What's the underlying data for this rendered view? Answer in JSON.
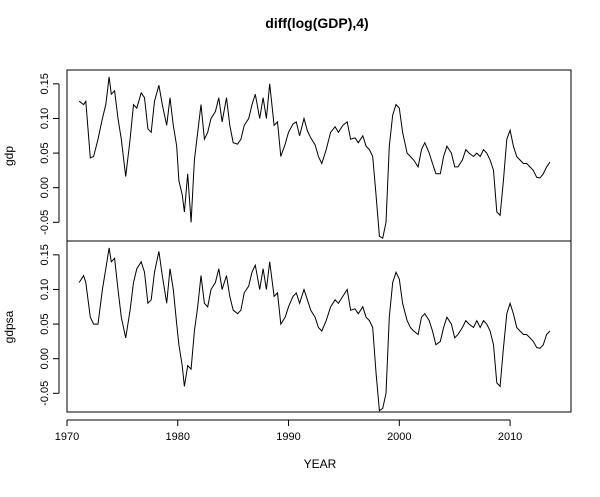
{
  "chart_data": {
    "type": "line",
    "title": "diff(log(GDP),4)",
    "xlabel": "YEAR",
    "xlim": [
      1970,
      2015.5
    ],
    "x_ticks": [
      1970,
      1980,
      1990,
      2000,
      2010
    ],
    "colors": {
      "line": "#000000",
      "axis": "#000000",
      "background": "#ffffff"
    },
    "panels": [
      {
        "ylabel": "gdp",
        "ylim": [
          -0.077,
          0.17
        ],
        "y_ticks": [
          -0.05,
          0.0,
          0.05,
          0.1,
          0.15
        ],
        "y_tick_labels": [
          "-0.05",
          "0.00",
          "0.05",
          "0.10",
          "0.15"
        ],
        "x": [
          1971.1,
          1971.5,
          1971.7,
          1972.1,
          1972.4,
          1972.8,
          1973.2,
          1973.5,
          1973.8,
          1974.0,
          1974.3,
          1974.6,
          1974.9,
          1975.3,
          1975.7,
          1976.0,
          1976.3,
          1976.7,
          1977.0,
          1977.3,
          1977.6,
          1977.9,
          1978.3,
          1978.6,
          1979.0,
          1979.3,
          1979.6,
          1979.9,
          1980.1,
          1980.4,
          1980.6,
          1980.9,
          1981.2,
          1981.5,
          1981.8,
          1982.1,
          1982.4,
          1982.7,
          1983.0,
          1983.4,
          1983.7,
          1984.0,
          1984.4,
          1984.7,
          1985.0,
          1985.4,
          1985.7,
          1986.0,
          1986.4,
          1986.7,
          1987.0,
          1987.4,
          1987.7,
          1988.0,
          1988.3,
          1988.7,
          1989.0,
          1989.3,
          1989.7,
          1990.0,
          1990.4,
          1990.7,
          1991.0,
          1991.4,
          1991.7,
          1992.0,
          1992.4,
          1992.7,
          1993.0,
          1993.4,
          1993.8,
          1994.2,
          1994.5,
          1994.9,
          1995.3,
          1995.6,
          1996.0,
          1996.3,
          1996.7,
          1997.0,
          1997.3,
          1997.6,
          1997.9,
          1998.2,
          1998.5,
          1998.8,
          1999.1,
          1999.4,
          1999.7,
          2000.0,
          2000.3,
          2000.7,
          2001.0,
          2001.3,
          2001.7,
          2002.0,
          2002.3,
          2002.7,
          2003.0,
          2003.3,
          2003.7,
          2004.0,
          2004.3,
          2004.7,
          2005.0,
          2005.3,
          2005.7,
          2006.0,
          2006.3,
          2006.7,
          2007.0,
          2007.3,
          2007.6,
          2007.9,
          2008.2,
          2008.5,
          2008.8,
          2009.1,
          2009.4,
          2009.7,
          2010.0,
          2010.3,
          2010.6,
          2010.9,
          2011.2,
          2011.5,
          2011.8,
          2012.1,
          2012.4,
          2012.7,
          2013.0,
          2013.3,
          2013.6
        ],
        "values": [
          0.125,
          0.12,
          0.125,
          0.043,
          0.045,
          0.07,
          0.1,
          0.12,
          0.16,
          0.135,
          0.14,
          0.1,
          0.07,
          0.016,
          0.07,
          0.12,
          0.115,
          0.137,
          0.13,
          0.085,
          0.08,
          0.125,
          0.148,
          0.12,
          0.09,
          0.13,
          0.09,
          0.06,
          0.01,
          -0.01,
          -0.035,
          0.02,
          -0.05,
          0.04,
          0.08,
          0.12,
          0.07,
          0.08,
          0.1,
          0.11,
          0.13,
          0.095,
          0.13,
          0.09,
          0.065,
          0.063,
          0.07,
          0.09,
          0.1,
          0.12,
          0.135,
          0.1,
          0.13,
          0.1,
          0.15,
          0.09,
          0.095,
          0.045,
          0.063,
          0.08,
          0.092,
          0.095,
          0.075,
          0.1,
          0.082,
          0.072,
          0.062,
          0.045,
          0.035,
          0.055,
          0.08,
          0.088,
          0.08,
          0.09,
          0.095,
          0.07,
          0.072,
          0.065,
          0.075,
          0.06,
          0.055,
          0.045,
          -0.01,
          -0.07,
          -0.073,
          -0.05,
          0.06,
          0.105,
          0.12,
          0.115,
          0.08,
          0.05,
          0.045,
          0.04,
          0.03,
          0.055,
          0.065,
          0.05,
          0.035,
          0.02,
          0.02,
          0.045,
          0.06,
          0.05,
          0.03,
          0.03,
          0.04,
          0.055,
          0.05,
          0.045,
          0.05,
          0.045,
          0.055,
          0.05,
          0.04,
          0.025,
          -0.035,
          -0.04,
          0.01,
          0.07,
          0.083,
          0.06,
          0.045,
          0.04,
          0.035,
          0.035,
          0.03,
          0.025,
          0.015,
          0.014,
          0.02,
          0.03,
          0.037
        ]
      },
      {
        "ylabel": "gdpsa",
        "ylim": [
          -0.077,
          0.17
        ],
        "y_ticks": [
          -0.05,
          0.0,
          0.05,
          0.1,
          0.15
        ],
        "y_tick_labels": [
          "-0.05",
          "0.00",
          "0.05",
          "0.10",
          "0.15"
        ],
        "x": [
          1971.1,
          1971.5,
          1971.7,
          1972.1,
          1972.4,
          1972.8,
          1973.2,
          1973.5,
          1973.8,
          1974.0,
          1974.3,
          1974.6,
          1974.9,
          1975.3,
          1975.7,
          1976.0,
          1976.3,
          1976.7,
          1977.0,
          1977.3,
          1977.6,
          1977.9,
          1978.3,
          1978.6,
          1979.0,
          1979.3,
          1979.6,
          1979.9,
          1980.1,
          1980.4,
          1980.6,
          1980.9,
          1981.2,
          1981.5,
          1981.8,
          1982.1,
          1982.4,
          1982.7,
          1983.0,
          1983.4,
          1983.7,
          1984.0,
          1984.4,
          1984.7,
          1985.0,
          1985.4,
          1985.7,
          1986.0,
          1986.4,
          1986.7,
          1987.0,
          1987.4,
          1987.7,
          1988.0,
          1988.3,
          1988.7,
          1989.0,
          1989.3,
          1989.7,
          1990.0,
          1990.4,
          1990.7,
          1991.0,
          1991.4,
          1991.7,
          1992.0,
          1992.4,
          1992.7,
          1993.0,
          1993.4,
          1993.8,
          1994.2,
          1994.5,
          1994.9,
          1995.3,
          1995.6,
          1996.0,
          1996.3,
          1996.7,
          1997.0,
          1997.3,
          1997.6,
          1997.9,
          1998.2,
          1998.5,
          1998.8,
          1999.1,
          1999.4,
          1999.7,
          2000.0,
          2000.3,
          2000.7,
          2001.0,
          2001.3,
          2001.7,
          2002.0,
          2002.3,
          2002.7,
          2003.0,
          2003.3,
          2003.7,
          2004.0,
          2004.3,
          2004.7,
          2005.0,
          2005.3,
          2005.7,
          2006.0,
          2006.3,
          2006.7,
          2007.0,
          2007.3,
          2007.6,
          2007.9,
          2008.2,
          2008.5,
          2008.8,
          2009.1,
          2009.4,
          2009.7,
          2010.0,
          2010.3,
          2010.6,
          2010.9,
          2011.2,
          2011.5,
          2011.8,
          2012.1,
          2012.4,
          2012.7,
          2013.0,
          2013.3,
          2013.6
        ],
        "values": [
          0.11,
          0.12,
          0.11,
          0.06,
          0.05,
          0.05,
          0.1,
          0.13,
          0.16,
          0.14,
          0.145,
          0.1,
          0.06,
          0.03,
          0.07,
          0.11,
          0.13,
          0.14,
          0.125,
          0.08,
          0.085,
          0.125,
          0.155,
          0.12,
          0.08,
          0.13,
          0.1,
          0.05,
          0.02,
          -0.01,
          -0.04,
          -0.01,
          -0.015,
          0.04,
          0.075,
          0.12,
          0.08,
          0.075,
          0.1,
          0.11,
          0.13,
          0.1,
          0.12,
          0.09,
          0.07,
          0.065,
          0.07,
          0.095,
          0.105,
          0.125,
          0.135,
          0.1,
          0.13,
          0.1,
          0.14,
          0.09,
          0.095,
          0.05,
          0.06,
          0.075,
          0.09,
          0.095,
          0.08,
          0.1,
          0.085,
          0.07,
          0.06,
          0.045,
          0.04,
          0.055,
          0.075,
          0.085,
          0.08,
          0.09,
          0.1,
          0.07,
          0.072,
          0.065,
          0.075,
          0.06,
          0.055,
          0.045,
          -0.02,
          -0.075,
          -0.072,
          -0.05,
          0.06,
          0.11,
          0.125,
          0.115,
          0.08,
          0.055,
          0.045,
          0.04,
          0.035,
          0.06,
          0.065,
          0.055,
          0.04,
          0.02,
          0.025,
          0.045,
          0.06,
          0.05,
          0.03,
          0.035,
          0.045,
          0.055,
          0.05,
          0.045,
          0.055,
          0.045,
          0.055,
          0.05,
          0.04,
          0.02,
          -0.035,
          -0.04,
          0.015,
          0.065,
          0.08,
          0.065,
          0.045,
          0.04,
          0.035,
          0.035,
          0.03,
          0.025,
          0.016,
          0.015,
          0.02,
          0.035,
          0.04
        ]
      }
    ]
  }
}
